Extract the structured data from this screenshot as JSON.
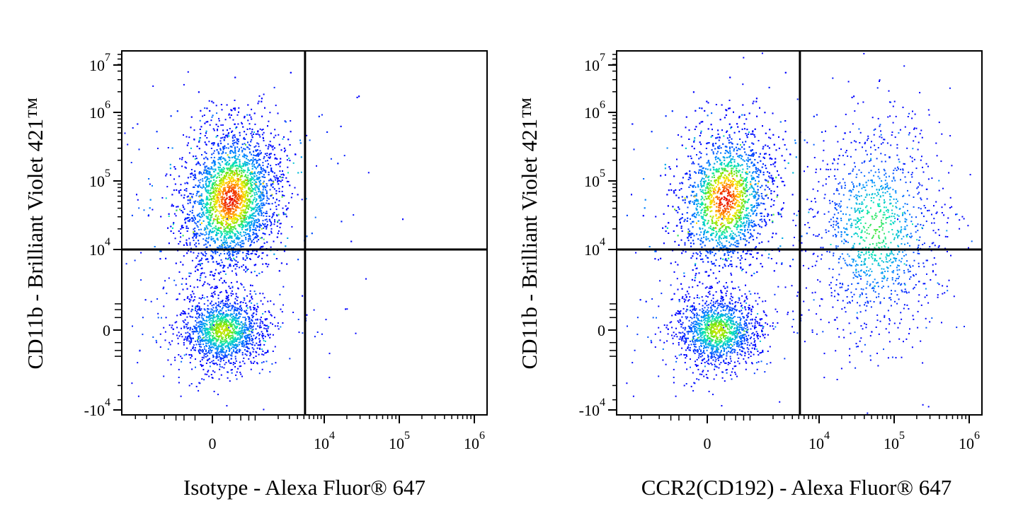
{
  "chart_data": [
    {
      "type": "scatter",
      "subtype": "flow-cytometry-density-dot-plot",
      "xlabel": "Isotype - Alexa Fluor® 647",
      "ylabel": "CD11b - Brilliant Violet 421™",
      "x_scale": "biexponential",
      "y_scale": "biexponential",
      "x_ticks": [
        {
          "label": "0",
          "exp": ""
        },
        {
          "label": "10",
          "exp": "4"
        },
        {
          "label": "10",
          "exp": "5"
        },
        {
          "label": "10",
          "exp": "6"
        }
      ],
      "y_ticks": [
        {
          "label": "10",
          "exp": "7"
        },
        {
          "label": "10",
          "exp": "6"
        },
        {
          "label": "10",
          "exp": "5"
        },
        {
          "label": "10",
          "exp": "4"
        },
        {
          "label": "0",
          "exp": ""
        },
        {
          "label": "-10",
          "exp": "4"
        }
      ],
      "quadrant_gate": {
        "x": 5200,
        "y": 10000
      },
      "legend": "none",
      "grid": false,
      "populations": [
        {
          "x_center": 200,
          "y_center": 55000,
          "x_spread": 900,
          "y_spread": 60000,
          "count": 4200,
          "peak": "red"
        },
        {
          "x_center": 100,
          "y_center": 0,
          "x_spread": 700,
          "y_spread": 2500,
          "count": 1600,
          "peak": "yellow-green"
        }
      ]
    },
    {
      "type": "scatter",
      "subtype": "flow-cytometry-density-dot-plot",
      "xlabel": "CCR2(CD192) - Alexa Fluor® 647",
      "ylabel": "CD11b - Brilliant Violet 421™",
      "x_scale": "biexponential",
      "y_scale": "biexponential",
      "x_ticks": [
        {
          "label": "0",
          "exp": ""
        },
        {
          "label": "10",
          "exp": "4"
        },
        {
          "label": "10",
          "exp": "5"
        },
        {
          "label": "10",
          "exp": "6"
        }
      ],
      "y_ticks": [
        {
          "label": "10",
          "exp": "7"
        },
        {
          "label": "10",
          "exp": "6"
        },
        {
          "label": "10",
          "exp": "5"
        },
        {
          "label": "10",
          "exp": "4"
        },
        {
          "label": "0",
          "exp": ""
        },
        {
          "label": "-10",
          "exp": "4"
        }
      ],
      "quadrant_gate": {
        "x": 5200,
        "y": 10000
      },
      "legend": "none",
      "grid": false,
      "populations": [
        {
          "x_center": 200,
          "y_center": 55000,
          "x_spread": 900,
          "y_spread": 60000,
          "count": 3600,
          "peak": "red"
        },
        {
          "x_center": 100,
          "y_center": 0,
          "x_spread": 700,
          "y_spread": 2500,
          "count": 1500,
          "peak": "yellow-green"
        },
        {
          "x_center": 55000,
          "y_center": 20000,
          "x_spread": 40000,
          "y_spread": 80000,
          "count": 1300,
          "peak": "green"
        }
      ]
    }
  ]
}
